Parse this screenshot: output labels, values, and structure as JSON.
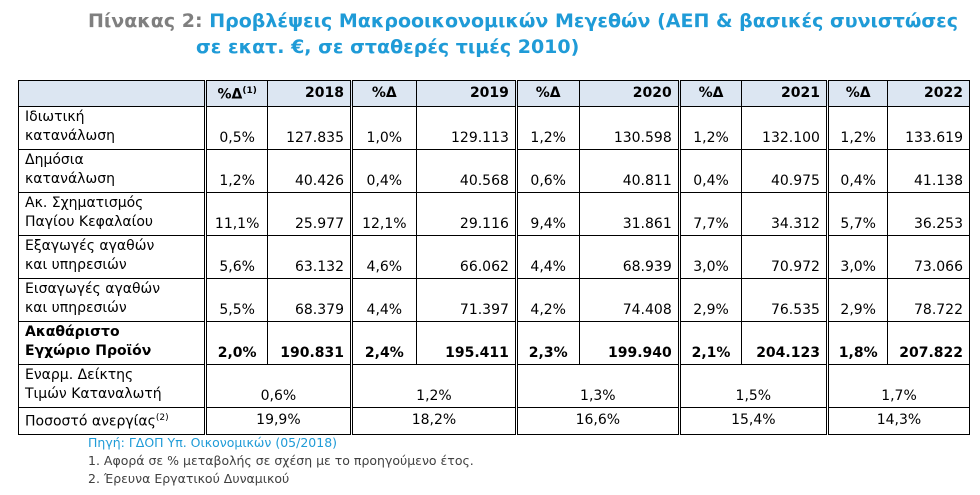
{
  "header": {
    "label": "Πίνακας 2:",
    "title_lines": [
      "Προβλέψεις Μακροοικονομικών Μεγεθών (ΑΕΠ & βασικές συνιστώσες",
      "σε εκατ. €, σε σταθερές τιμές 2010)"
    ]
  },
  "table": {
    "change_labels": [
      "%Δ",
      "%Δ",
      "%Δ",
      "%Δ",
      "%Δ"
    ],
    "change_note": "(1)",
    "years": [
      "2018",
      "2019",
      "2020",
      "2021",
      "2022"
    ],
    "rows": [
      {
        "label": [
          "Ιδιωτική",
          "κατανάλωση"
        ],
        "cells": [
          "0,5%",
          "127.835",
          "1,0%",
          "129.113",
          "1,2%",
          "130.598",
          "1,2%",
          "132.100",
          "1,2%",
          "133.619"
        ]
      },
      {
        "label": [
          "Δημόσια",
          "κατανάλωση"
        ],
        "cells": [
          "1,2%",
          "40.426",
          "0,4%",
          "40.568",
          "0,6%",
          "40.811",
          "0,4%",
          "40.975",
          "0,4%",
          "41.138"
        ]
      },
      {
        "label": [
          "Ακ. Σχηματισμός",
          "Παγίου Κεφαλαίου"
        ],
        "cells": [
          "11,1%",
          "25.977",
          "12,1%",
          "29.116",
          "9,4%",
          "31.861",
          "7,7%",
          "34.312",
          "5,7%",
          "36.253"
        ]
      },
      {
        "label": [
          "Εξαγωγές αγαθών",
          "και υπηρεσιών"
        ],
        "cells": [
          "5,6%",
          "63.132",
          "4,6%",
          "66.062",
          "4,4%",
          "68.939",
          "3,0%",
          "70.972",
          "3,0%",
          "73.066"
        ]
      },
      {
        "label": [
          "Εισαγωγές αγαθών",
          "και υπηρεσιών"
        ],
        "cells": [
          "5,5%",
          "68.379",
          "4,4%",
          "71.397",
          "4,2%",
          "74.408",
          "2,9%",
          "76.535",
          "2,9%",
          "78.722"
        ]
      },
      {
        "label": [
          "Ακαθάριστο",
          "Εγχώριο Προϊόν"
        ],
        "bold": true,
        "cells": [
          "2,0%",
          "190.831",
          "2,4%",
          "195.411",
          "2,3%",
          "199.940",
          "2,1%",
          "204.123",
          "1,8%",
          "207.822"
        ]
      },
      {
        "label": [
          "Εναρμ. Δείκτης",
          "Τιμών Καταναλωτή"
        ],
        "cells": [
          "0,6%",
          "1,2%",
          "1,3%",
          "1,5%",
          "1,7%"
        ]
      },
      {
        "label": [
          "Ποσοστό ανεργίας"
        ],
        "note": "(2)",
        "cells": [
          "19,9%",
          "18,2%",
          "16,6%",
          "15,4%",
          "14,3%"
        ]
      }
    ]
  },
  "footer": {
    "source": "Πηγή: ΓΔΟΠ Υπ. Οικονομικών (05/2018)",
    "notes": [
      "1. Αφορά σε % μεταβολής σε σχέση με το προηγούμενο έτος.",
      "2. Έρευνα Εργατικού Δυναμικού"
    ]
  }
}
